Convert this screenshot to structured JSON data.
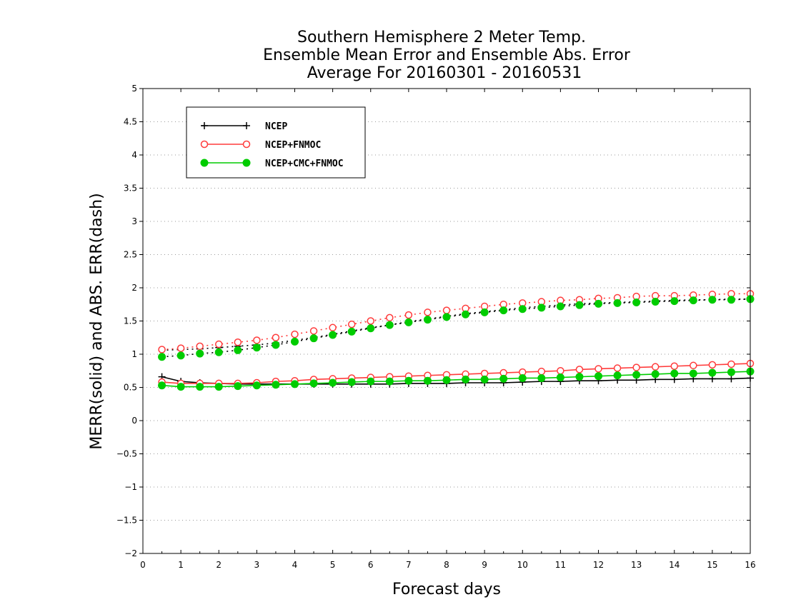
{
  "chart_data": {
    "type": "line",
    "title": [
      "Southern Hemisphere 2 Meter Temp.",
      "Ensemble Mean Error and Ensemble Abs. Error",
      "Average For 20160301 - 20160531"
    ],
    "xlabel": "Forecast days",
    "ylabel": "MERR(solid) and ABS. ERR(dash)",
    "xlim": [
      0,
      16
    ],
    "ylim": [
      -2,
      5
    ],
    "xticks": [
      "0",
      "1",
      "2",
      "3",
      "4",
      "5",
      "6",
      "7",
      "8",
      "9",
      "10",
      "11",
      "12",
      "13",
      "14",
      "15",
      "16"
    ],
    "yticks": [
      "−2",
      "−1.5",
      "−1",
      "−0.5",
      "0",
      "0.5",
      "1",
      "1.5",
      "2",
      "2.5",
      "3",
      "3.5",
      "4",
      "4.5",
      "5"
    ],
    "grid": "horizontal-dotted",
    "legend_position": "top-left",
    "x": [
      0.5,
      1,
      1.5,
      2,
      2.5,
      3,
      3.5,
      4,
      4.5,
      5,
      5.5,
      6,
      6.5,
      7,
      7.5,
      8,
      8.5,
      9,
      9.5,
      10,
      10.5,
      11,
      11.5,
      12,
      12.5,
      13,
      13.5,
      14,
      14.5,
      15,
      15.5,
      16
    ],
    "series": [
      {
        "name": "NCEP",
        "color": "#000000",
        "marker": "plus",
        "merr": [
          0.66,
          0.59,
          0.57,
          0.56,
          0.55,
          0.55,
          0.55,
          0.55,
          0.55,
          0.55,
          0.55,
          0.55,
          0.55,
          0.56,
          0.56,
          0.56,
          0.57,
          0.57,
          0.57,
          0.58,
          0.59,
          0.59,
          0.6,
          0.6,
          0.61,
          0.61,
          0.62,
          0.62,
          0.63,
          0.63,
          0.63,
          0.64
        ],
        "abs_err": [
          1.06,
          1.07,
          1.08,
          1.1,
          1.12,
          1.14,
          1.17,
          1.21,
          1.25,
          1.3,
          1.35,
          1.4,
          1.44,
          1.49,
          1.53,
          1.57,
          1.61,
          1.64,
          1.67,
          1.7,
          1.72,
          1.74,
          1.76,
          1.77,
          1.78,
          1.79,
          1.8,
          1.81,
          1.82,
          1.82,
          1.83,
          1.83
        ]
      },
      {
        "name": "NCEP+FNMOC",
        "color": "#ff3b3b",
        "marker": "open-circle",
        "merr": [
          0.58,
          0.56,
          0.56,
          0.56,
          0.56,
          0.57,
          0.59,
          0.6,
          0.62,
          0.63,
          0.64,
          0.65,
          0.66,
          0.67,
          0.68,
          0.69,
          0.7,
          0.71,
          0.72,
          0.73,
          0.74,
          0.75,
          0.77,
          0.78,
          0.79,
          0.8,
          0.81,
          0.82,
          0.83,
          0.84,
          0.85,
          0.86
        ],
        "abs_err": [
          1.07,
          1.09,
          1.12,
          1.15,
          1.18,
          1.21,
          1.25,
          1.3,
          1.35,
          1.4,
          1.45,
          1.5,
          1.55,
          1.59,
          1.63,
          1.66,
          1.69,
          1.72,
          1.75,
          1.77,
          1.79,
          1.81,
          1.82,
          1.84,
          1.85,
          1.87,
          1.88,
          1.88,
          1.89,
          1.9,
          1.91,
          1.91
        ]
      },
      {
        "name": "NCEP+CMC+FNMOC",
        "color": "#00cc00",
        "marker": "filled-circle",
        "merr": [
          0.53,
          0.51,
          0.51,
          0.51,
          0.52,
          0.53,
          0.54,
          0.55,
          0.56,
          0.57,
          0.58,
          0.59,
          0.59,
          0.6,
          0.6,
          0.61,
          0.62,
          0.62,
          0.63,
          0.64,
          0.64,
          0.65,
          0.66,
          0.67,
          0.68,
          0.69,
          0.7,
          0.71,
          0.71,
          0.72,
          0.73,
          0.74
        ],
        "abs_err": [
          0.96,
          0.98,
          1.01,
          1.03,
          1.06,
          1.1,
          1.14,
          1.19,
          1.24,
          1.29,
          1.34,
          1.39,
          1.44,
          1.48,
          1.52,
          1.56,
          1.6,
          1.63,
          1.66,
          1.68,
          1.7,
          1.72,
          1.74,
          1.76,
          1.77,
          1.78,
          1.79,
          1.8,
          1.81,
          1.82,
          1.82,
          1.83
        ]
      }
    ]
  }
}
